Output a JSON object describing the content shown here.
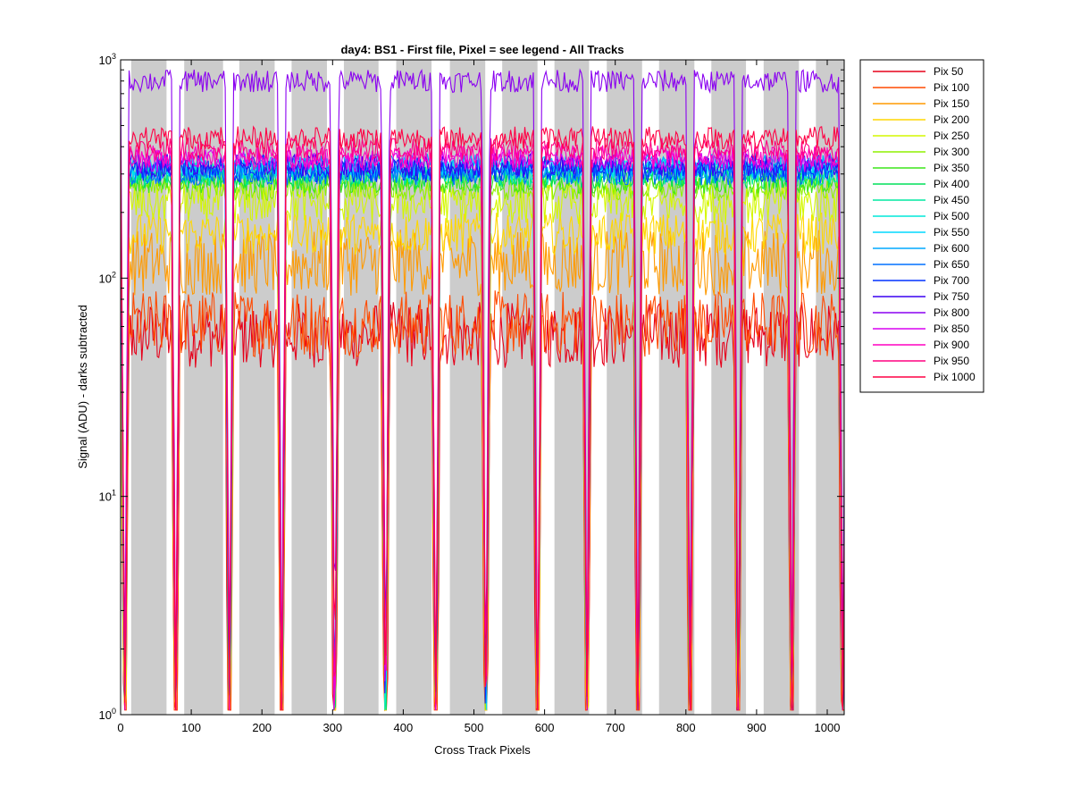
{
  "chart_data": {
    "type": "line",
    "title": "day4: BS1 - First file, Pixel = see legend - All Tracks",
    "xlabel": "Cross Track Pixels",
    "ylabel": "Signal (ADU) - darks subtracted",
    "xlim": [
      0,
      1024
    ],
    "ylim": [
      1,
      1000
    ],
    "yscale": "log",
    "xticks": [
      "0",
      "100",
      "200",
      "300",
      "400",
      "500",
      "600",
      "700",
      "800",
      "900",
      "1000"
    ],
    "yticks": [
      {
        "base": "10",
        "exp": "0"
      },
      {
        "base": "10",
        "exp": "1"
      },
      {
        "base": "10",
        "exp": "2"
      },
      {
        "base": "10",
        "exp": "3"
      }
    ],
    "grid": false,
    "legend_position": "outside-right",
    "shaded_tracks": [
      [
        15,
        65
      ],
      [
        90,
        145
      ],
      [
        168,
        218
      ],
      [
        242,
        292
      ],
      [
        316,
        365
      ],
      [
        390,
        440
      ],
      [
        466,
        516
      ],
      [
        540,
        590
      ],
      [
        614,
        663
      ],
      [
        688,
        738
      ],
      [
        762,
        812
      ],
      [
        836,
        885
      ],
      [
        910,
        960
      ],
      [
        984,
        1030
      ]
    ],
    "series": [
      {
        "name": "Pix 50",
        "level": 55,
        "color": "#e6001a"
      },
      {
        "name": "Pix 100",
        "level": 62,
        "color": "#ff4a00"
      },
      {
        "name": "Pix 150",
        "level": 118,
        "color": "#ff9a00"
      },
      {
        "name": "Pix 200",
        "level": 160,
        "color": "#ffd700"
      },
      {
        "name": "Pix 250",
        "level": 220,
        "color": "#d4f700"
      },
      {
        "name": "Pix 300",
        "level": 255,
        "color": "#8ff000"
      },
      {
        "name": "Pix 350",
        "level": 275,
        "color": "#3de61a"
      },
      {
        "name": "Pix 400",
        "level": 290,
        "color": "#00e05a"
      },
      {
        "name": "Pix 450",
        "level": 300,
        "color": "#00e8a0"
      },
      {
        "name": "Pix 500",
        "level": 310,
        "color": "#00e8d8"
      },
      {
        "name": "Pix 550",
        "level": 320,
        "color": "#00d8ff"
      },
      {
        "name": "Pix 600",
        "level": 330,
        "color": "#00a8ff"
      },
      {
        "name": "Pix 650",
        "level": 300,
        "color": "#0070ff"
      },
      {
        "name": "Pix 700",
        "level": 310,
        "color": "#0030ff"
      },
      {
        "name": "Pix 750",
        "level": 330,
        "color": "#3a00f0"
      },
      {
        "name": "Pix 800",
        "level": 800,
        "color": "#8a00f0"
      },
      {
        "name": "Pix 850",
        "level": 345,
        "color": "#d800f0"
      },
      {
        "name": "Pix 900",
        "level": 360,
        "color": "#ff00c0"
      },
      {
        "name": "Pix 950",
        "level": 390,
        "color": "#ff0080"
      },
      {
        "name": "Pix 1000",
        "level": 440,
        "color": "#ff0044"
      }
    ]
  }
}
